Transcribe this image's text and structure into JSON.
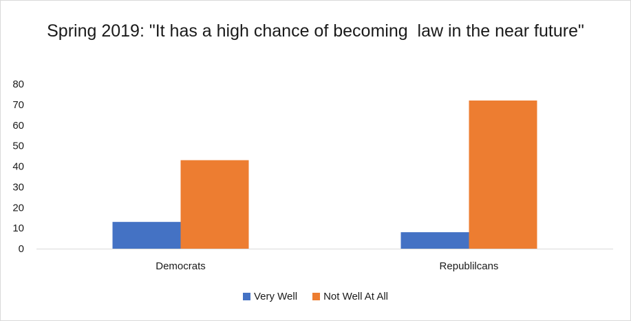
{
  "chart_data": {
    "type": "bar",
    "title": "Spring 2019: \"It has a high chance of becoming  law in the near future\"",
    "categories": [
      "Democrats",
      "Republilcans"
    ],
    "series": [
      {
        "name": "Very Well",
        "values": [
          13,
          8
        ],
        "color": "#4472c4"
      },
      {
        "name": "Not Well At All",
        "values": [
          43,
          72
        ],
        "color": "#ed7d31"
      }
    ],
    "ylim": [
      0,
      80
    ],
    "yticks": [
      0,
      10,
      20,
      30,
      40,
      50,
      60,
      70,
      80
    ],
    "grid": false,
    "legend": "bottom",
    "xlabel": "",
    "ylabel": ""
  }
}
